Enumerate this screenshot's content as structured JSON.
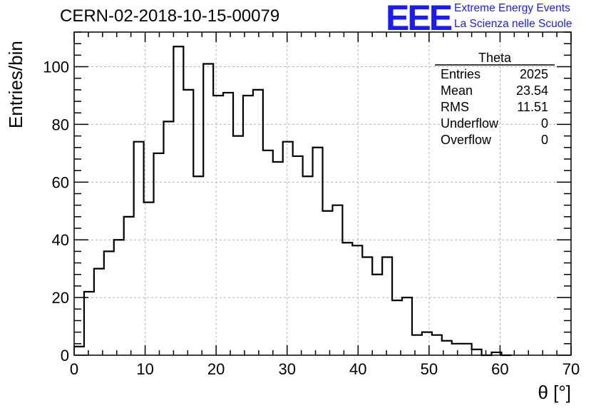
{
  "header": {
    "run_id": "CERN-02-2018-10-15-00079",
    "logo_text": "EEE",
    "logo_line1": "Extreme Energy Events",
    "logo_line2": "La Scienza nelle Scuole",
    "logo_color": "#1a1aff"
  },
  "stats_box": {
    "title": "Theta",
    "rows": [
      {
        "label": "Entries",
        "value": "2025"
      },
      {
        "label": "Mean",
        "value": "23.54"
      },
      {
        "label": "RMS",
        "value": "11.51"
      },
      {
        "label": "Underflow",
        "value": "0"
      },
      {
        "label": "Overflow",
        "value": "0"
      }
    ]
  },
  "chart_data": {
    "type": "bar",
    "histogram": "step",
    "bin_width": 1.4,
    "bin_start": 0,
    "values": [
      3,
      22,
      30,
      36,
      40,
      48,
      74,
      53,
      70,
      81,
      107,
      92,
      62,
      101,
      90,
      91,
      76,
      90,
      92,
      71,
      67,
      74,
      69,
      62,
      72,
      50,
      52,
      39,
      38,
      34,
      28,
      34,
      19,
      20,
      7,
      8,
      7,
      5,
      4,
      4,
      2,
      0,
      1,
      0
    ],
    "xlabel": "θ [°]",
    "ylabel": "Entries/bin",
    "xlim": [
      0,
      70
    ],
    "ylim": [
      0,
      112
    ],
    "x_ticks": [
      0,
      10,
      20,
      30,
      40,
      50,
      60,
      70
    ],
    "y_ticks": [
      0,
      20,
      40,
      60,
      80,
      100
    ],
    "grid": true,
    "line_color": "#000000",
    "grid_color": "#b4b4b4"
  }
}
